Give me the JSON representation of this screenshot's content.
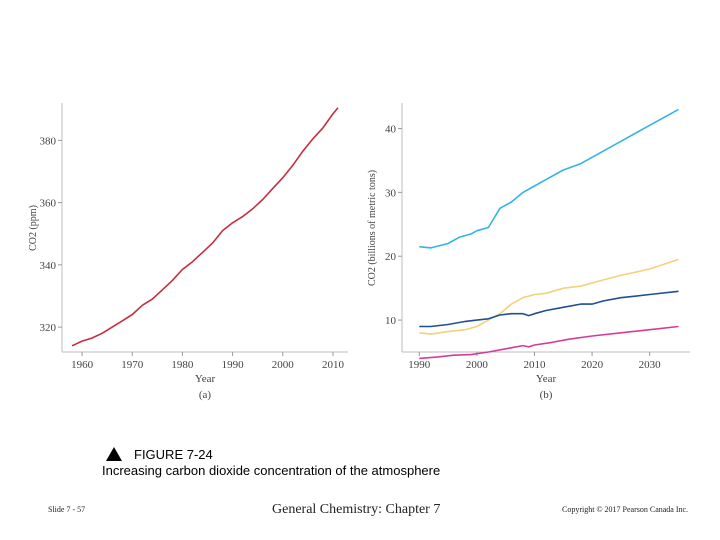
{
  "chart_data": [
    {
      "type": "line",
      "panel_label": "(a)",
      "xlabel": "Year",
      "ylabel": "CO2 (ppm)",
      "xlim": [
        1956,
        2013
      ],
      "ylim": [
        312,
        392
      ],
      "x_ticks": [
        1960,
        1970,
        1980,
        1990,
        2000,
        2010
      ],
      "y_ticks": [
        320,
        340,
        360,
        380
      ],
      "series": [
        {
          "name": "CO2 concentration",
          "color": "#c62e3e",
          "x": [
            1958,
            1960,
            1962,
            1964,
            1966,
            1968,
            1970,
            1972,
            1974,
            1976,
            1978,
            1980,
            1982,
            1984,
            1986,
            1988,
            1990,
            1992,
            1994,
            1996,
            1998,
            2000,
            2002,
            2004,
            2006,
            2008,
            2010,
            2011
          ],
          "y": [
            314,
            315.5,
            316.5,
            318,
            320,
            322,
            324,
            327,
            329,
            332,
            335,
            338.5,
            341,
            344,
            347,
            351,
            353.5,
            355.5,
            358,
            361,
            364.5,
            368,
            372,
            376.5,
            380.5,
            384,
            388.5,
            390.5
          ]
        }
      ]
    },
    {
      "type": "line",
      "panel_label": "(b)",
      "xlabel": "Year",
      "ylabel": "CO2 (billions of metric tons)",
      "xlim": [
        1987,
        2037
      ],
      "ylim": [
        5,
        44
      ],
      "x_ticks": [
        1990,
        2000,
        2010,
        2020,
        2030
      ],
      "y_ticks": [
        10,
        20,
        30,
        40
      ],
      "series": [
        {
          "name": "cyan",
          "color": "#35b3e6",
          "x": [
            1990,
            1992,
            1995,
            1997,
            1999,
            2000,
            2002,
            2004,
            2006,
            2008,
            2010,
            2012,
            2015,
            2018,
            2020,
            2022,
            2025,
            2030,
            2035
          ],
          "y": [
            21.5,
            21.3,
            22,
            23,
            23.5,
            24,
            24.5,
            27.5,
            28.5,
            30,
            31,
            32,
            33.5,
            34.5,
            35.5,
            36.5,
            38,
            40.5,
            43
          ]
        },
        {
          "name": "yellow",
          "color": "#f2d27a",
          "x": [
            1990,
            1992,
            1995,
            1998,
            2000,
            2002,
            2004,
            2006,
            2008,
            2010,
            2012,
            2015,
            2018,
            2020,
            2022,
            2025,
            2030,
            2035
          ],
          "y": [
            8,
            7.8,
            8.2,
            8.5,
            9,
            10,
            11,
            12.5,
            13.5,
            14,
            14.2,
            15,
            15.3,
            15.8,
            16.3,
            17,
            18,
            19.5
          ]
        },
        {
          "name": "navy",
          "color": "#1f4f93",
          "x": [
            1990,
            1992,
            1995,
            1998,
            2000,
            2002,
            2004,
            2006,
            2008,
            2009,
            2010,
            2012,
            2015,
            2018,
            2020,
            2022,
            2025,
            2030,
            2035
          ],
          "y": [
            9,
            9,
            9.3,
            9.8,
            10,
            10.2,
            10.8,
            11,
            11,
            10.7,
            11,
            11.5,
            12,
            12.5,
            12.5,
            13,
            13.5,
            14,
            14.5
          ]
        },
        {
          "name": "magenta",
          "color": "#d63b9a",
          "x": [
            1990,
            1993,
            1996,
            1999,
            2002,
            2005,
            2008,
            2009,
            2010,
            2013,
            2016,
            2020,
            2025,
            2030,
            2035
          ],
          "y": [
            4,
            4.2,
            4.5,
            4.6,
            5,
            5.5,
            6,
            5.8,
            6.1,
            6.5,
            7,
            7.5,
            8,
            8.5,
            9
          ]
        }
      ]
    }
  ],
  "caption": {
    "figure": "FIGURE 7-24",
    "title": "Increasing carbon dioxide concentration of the atmosphere"
  },
  "footer": {
    "slide": "Slide 7 - 57",
    "course": "General Chemistry: Chapter 7",
    "copyright": "Copyright © 2017 Pearson Canada Inc."
  }
}
